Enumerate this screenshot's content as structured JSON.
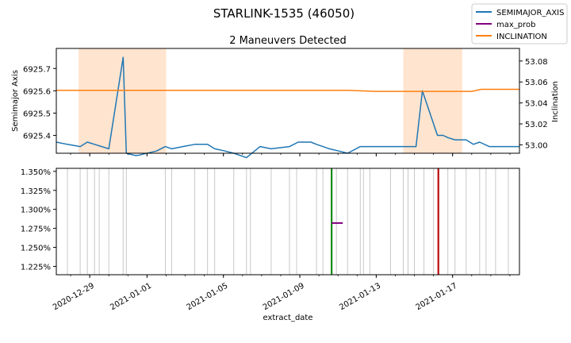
{
  "chart_data": {
    "type": "line",
    "suptitle": "STARLINK-1535 (46050)",
    "title": "2 Maneuvers Detected",
    "xlabel": "extract_date",
    "x_range": [
      "2020-12-27 06:00",
      "2021-01-20 12:00"
    ],
    "x_tick_labels": [
      {
        "date": "2020-12-29 00:00",
        "label": "2020-12-29"
      },
      {
        "date": "2021-01-01 00:00",
        "label": "2021-01-01"
      },
      {
        "date": "2021-01-05 00:00",
        "label": "2021-01-05"
      },
      {
        "date": "2021-01-09 00:00",
        "label": "2021-01-09"
      },
      {
        "date": "2021-01-13 00:00",
        "label": "2021-01-13"
      },
      {
        "date": "2021-01-17 00:00",
        "label": "2021-01-17"
      }
    ],
    "x_minor_ticks": [
      "2020-12-28",
      "2020-12-29",
      "2020-12-30",
      "2020-12-31",
      "2021-01-01",
      "2021-01-02",
      "2021-01-03",
      "2021-01-04",
      "2021-01-05",
      "2021-01-06",
      "2021-01-07",
      "2021-01-08",
      "2021-01-09",
      "2021-01-10",
      "2021-01-11",
      "2021-01-12",
      "2021-01-13",
      "2021-01-14",
      "2021-01-15",
      "2021-01-16",
      "2021-01-17",
      "2021-01-18",
      "2021-01-19",
      "2021-01-20"
    ],
    "legend": {
      "placement": "top-right",
      "entries": [
        {
          "label": "SEMIMAJOR_AXIS",
          "color": "#1f77b4"
        },
        {
          "label": "max_prob",
          "color": "#800080"
        },
        {
          "label": "INCLINATION",
          "color": "#ff7f0e"
        }
      ]
    },
    "top_panel": {
      "ylabel_left": "Semimajor Axis",
      "ylabel_right": "Inclination",
      "ylim_left": [
        6925.32,
        6925.79
      ],
      "yticks_left": [
        6925.4,
        6925.5,
        6925.6,
        6925.7
      ],
      "ytick_labels_left": [
        "6925.4",
        "6925.5",
        "6925.6",
        "6925.7"
      ],
      "ylim_right": [
        52.992,
        53.092
      ],
      "yticks_right": [
        53.0,
        53.02,
        53.04,
        53.06,
        53.08
      ],
      "ytick_labels_right": [
        "53.00",
        "53.02",
        "53.04",
        "53.06",
        "53.08"
      ],
      "maneuver_windows": [
        {
          "start": "2020-12-28 10:00",
          "end": "2021-01-02 00:00",
          "color": "#ffe4cf"
        },
        {
          "start": "2021-01-14 10:00",
          "end": "2021-01-17 12:00",
          "color": "#ffe4cf"
        }
      ],
      "series": [
        {
          "name": "SEMIMAJOR_AXIS",
          "color": "#1f77b4",
          "axis": "left",
          "x": [
            "2020-12-27 06:00",
            "2020-12-27 20:00",
            "2020-12-28 12:00",
            "2020-12-28 21:00",
            "2020-12-29 06:00",
            "2020-12-30 00:00",
            "2020-12-30 18:00",
            "2020-12-30 22:00",
            "2020-12-31 09:00",
            "2020-12-31 12:00",
            "2021-01-01 12:00",
            "2021-01-01 23:00",
            "2021-01-02 07:00",
            "2021-01-02 21:00",
            "2021-01-03 12:00",
            "2021-01-04 04:00",
            "2021-01-04 13:00",
            "2021-01-05 02:00",
            "2021-01-05 13:00",
            "2021-01-06 05:00",
            "2021-01-06 22:00",
            "2021-01-07 12:00",
            "2021-01-08 11:00",
            "2021-01-08 22:00",
            "2021-01-09 14:00",
            "2021-01-09 21:00",
            "2021-01-10 05:00",
            "2021-01-10 13:00",
            "2021-01-11 01:00",
            "2021-01-11 12:00",
            "2021-01-12 04:00",
            "2021-01-12 16:00",
            "2021-01-13 00:00",
            "2021-01-13 18:00",
            "2021-01-14 02:00",
            "2021-01-15 02:00",
            "2021-01-15 10:00",
            "2021-01-16 05:00",
            "2021-01-16 12:00",
            "2021-01-16 18:00",
            "2021-01-17 03:00",
            "2021-01-17 17:00",
            "2021-01-18 02:00",
            "2021-01-18 10:00",
            "2021-01-18 22:00",
            "2021-01-19 06:00",
            "2021-01-20 06:00",
            "2021-01-20 12:00"
          ],
          "values": [
            6925.37,
            6925.36,
            6925.35,
            6925.37,
            6925.36,
            6925.34,
            6925.75,
            6925.32,
            6925.31,
            6925.31,
            6925.33,
            6925.35,
            6925.34,
            6925.35,
            6925.36,
            6925.36,
            6925.34,
            6925.33,
            6925.32,
            6925.3,
            6925.35,
            6925.34,
            6925.35,
            6925.37,
            6925.37,
            6925.36,
            6925.35,
            6925.34,
            6925.33,
            6925.32,
            6925.35,
            6925.35,
            6925.35,
            6925.35,
            6925.35,
            6925.35,
            6925.6,
            6925.4,
            6925.4,
            6925.39,
            6925.38,
            6925.38,
            6925.36,
            6925.37,
            6925.35,
            6925.35,
            6925.35,
            6925.35
          ]
        },
        {
          "name": "INCLINATION",
          "color": "#ff7f0e",
          "axis": "right",
          "x": [
            "2020-12-27 06:00",
            "2020-12-30 00:00",
            "2020-12-31 12:00",
            "2021-01-01 12:00",
            "2021-01-03 00:00",
            "2021-01-05 00:00",
            "2021-01-07 00:00",
            "2021-01-09 00:00",
            "2021-01-10 00:00",
            "2021-01-11 12:00",
            "2021-01-13 00:00",
            "2021-01-15 00:00",
            "2021-01-16 00:00",
            "2021-01-17 00:00",
            "2021-01-18 00:00",
            "2021-01-18 12:00",
            "2021-01-19 12:00",
            "2021-01-20 12:00"
          ],
          "values": [
            53.052,
            53.052,
            53.052,
            53.052,
            53.052,
            53.052,
            53.052,
            53.052,
            53.052,
            53.052,
            53.051,
            53.051,
            53.051,
            53.051,
            53.051,
            53.053,
            53.053,
            53.053
          ]
        }
      ]
    },
    "bottom_panel": {
      "ylim": [
        1.214,
        1.354
      ],
      "yticks": [
        1.225,
        1.25,
        1.275,
        1.3,
        1.325,
        1.35
      ],
      "ytick_labels": [
        "1.225%",
        "1.250%",
        "1.275%",
        "1.300%",
        "1.325%",
        "1.350%"
      ],
      "event_lines_x": [
        "2020-12-27 20:00",
        "2020-12-28 12:00",
        "2020-12-28 21:00",
        "2020-12-29 06:00",
        "2020-12-29 12:00",
        "2020-12-30 00:00",
        "2020-12-30 18:00",
        "2020-12-30 22:00",
        "2021-01-01 23:00",
        "2021-01-02 07:00",
        "2021-01-03 12:00",
        "2021-01-04 04:00",
        "2021-01-04 13:00",
        "2021-01-05 13:00",
        "2021-01-06 05:00",
        "2021-01-06 10:00",
        "2021-01-07 12:00",
        "2021-01-08 11:00",
        "2021-01-08 20:00",
        "2021-01-09 21:00",
        "2021-01-10 05:00",
        "2021-01-10 22:00",
        "2021-01-11 12:00",
        "2021-01-12 04:00",
        "2021-01-12 08:00",
        "2021-01-12 16:00",
        "2021-01-13 18:00",
        "2021-01-14 10:00",
        "2021-01-14 16:00",
        "2021-01-15 00:00",
        "2021-01-15 12:00",
        "2021-01-16 00:00",
        "2021-01-16 07:00",
        "2021-01-16 18:00",
        "2021-01-17 03:00",
        "2021-01-17 17:00",
        "2021-01-18 10:00",
        "2021-01-18 18:00",
        "2021-01-19 06:00",
        "2021-01-19 22:00"
      ],
      "event_color": "#c8c8c8",
      "markers": [
        {
          "x": "2021-01-10 16:00",
          "color": "#008000"
        },
        {
          "x": "2021-01-16 06:00",
          "color": "#c00000"
        }
      ],
      "max_prob": {
        "x_start": "2021-01-10 16:00",
        "x_end": "2021-01-11 06:00",
        "value": 1.282,
        "color": "#800080"
      }
    }
  }
}
